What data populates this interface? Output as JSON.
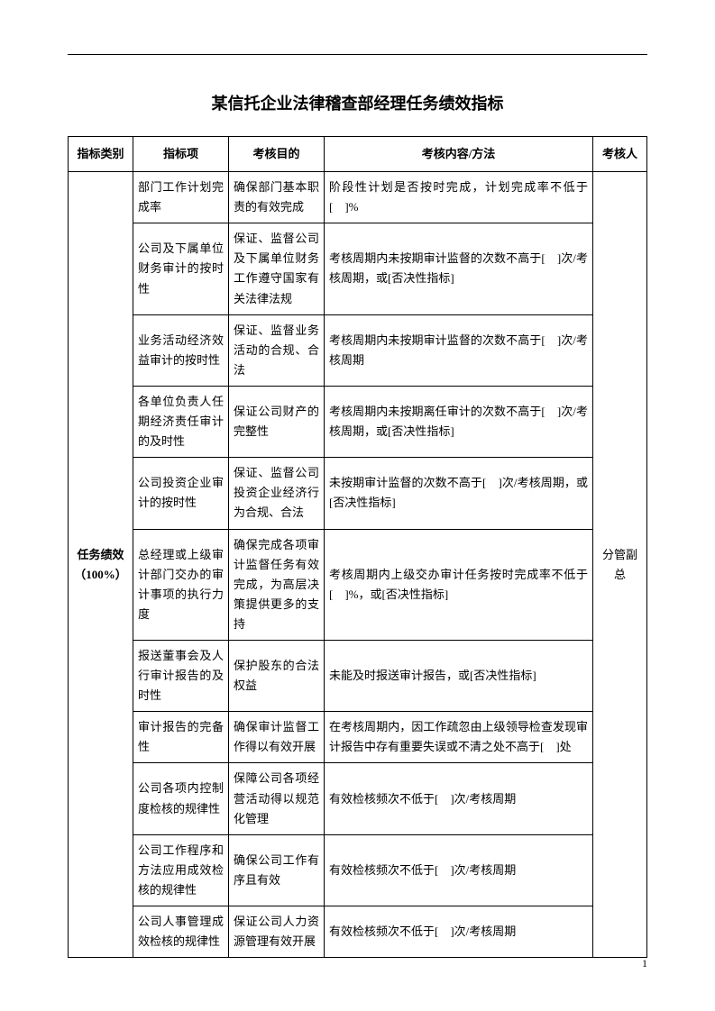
{
  "title": "某信托企业法律稽查部经理任务绩效指标",
  "pageNumber": "1",
  "table": {
    "headers": {
      "category": "指标类别",
      "item": "指标项",
      "purpose": "考核目的",
      "content": "考核内容/方法",
      "assessor": "考核人"
    },
    "categoryLabel": "任务绩效（100%）",
    "assessorLabel": "分管副总",
    "rows": [
      {
        "item": "部门工作计划完成率",
        "purpose": "确保部门基本职责的有效完成",
        "content": "阶段性计划是否按时完成，计划完成率不低于[　]%"
      },
      {
        "item": "公司及下属单位财务审计的按时性",
        "purpose": "保证、监督公司及下属单位财务工作遵守国家有关法律法规",
        "content": "考核周期内未按期审计监督的次数不高于[　]次/考核周期，或[否决性指标]"
      },
      {
        "item": "业务活动经济效益审计的按时性",
        "purpose": "保证、监督业务活动的合规、合法",
        "content": "考核周期内未按期审计监督的次数不高于[　]次/考核周期"
      },
      {
        "item": "各单位负责人任期经济责任审计的及时性",
        "purpose": "保证公司财产的完整性",
        "content": "考核周期内未按期离任审计的次数不高于[　]次/考核周期，或[否决性指标]"
      },
      {
        "item": "公司投资企业审计的按时性",
        "purpose": "保证、监督公司投资企业经济行为合规、合法",
        "content": "未按期审计监督的次数不高于[　]次/考核周期，或[否决性指标]"
      },
      {
        "item": "总经理或上级审计部门交办的审计事项的执行力度",
        "purpose": "确保完成各项审计监督任务有效完成，为高层决策提供更多的支持",
        "content": "考核周期内上级交办审计任务按时完成率不低于[　]%，或[否决性指标]"
      },
      {
        "item": "报送董事会及人行审计报告的及时性",
        "purpose": "保护股东的合法权益",
        "content": "未能及时报送审计报告，或[否决性指标]"
      },
      {
        "item": "审计报告的完备性",
        "purpose": "确保审计监督工作得以有效开展",
        "content": "在考核周期内，因工作疏忽由上级领导检查发现审计报告中存有重要失误或不清之处不高于[　]处"
      },
      {
        "item": "公司各项内控制度检核的规律性",
        "purpose": "保障公司各项经营活动得以规范化管理",
        "content": "有效检核频次不低于[　]次/考核周期"
      },
      {
        "item": "公司工作程序和方法应用成效检核的规律性",
        "purpose": "确保公司工作有序且有效",
        "content": "有效检核频次不低于[　]次/考核周期"
      },
      {
        "item": "公司人事管理成效检核的规律性",
        "purpose": "保证公司人力资源管理有效开展",
        "content": "有效检核频次不低于[　]次/考核周期"
      }
    ]
  }
}
